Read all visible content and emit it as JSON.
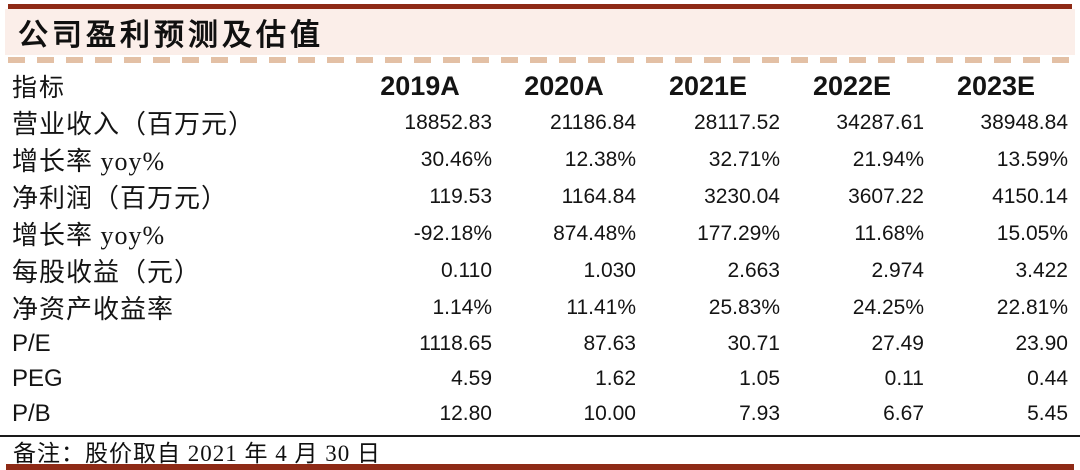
{
  "header": {
    "title": "公司盈利预测及估值"
  },
  "table": {
    "columns": [
      "指标",
      "2019A",
      "2020A",
      "2021E",
      "2022E",
      "2023E"
    ],
    "rows": [
      {
        "label": "营业收入（百万元）",
        "values": [
          "18852.83",
          "21186.84",
          "28117.52",
          "34287.61",
          "38948.84"
        ]
      },
      {
        "label": "增长率 yoy%",
        "values": [
          "30.46%",
          "12.38%",
          "32.71%",
          "21.94%",
          "13.59%"
        ]
      },
      {
        "label": "净利润（百万元）",
        "values": [
          "119.53",
          "1164.84",
          "3230.04",
          "3607.22",
          "4150.14"
        ]
      },
      {
        "label": "增长率 yoy%",
        "values": [
          "-92.18%",
          "874.48%",
          "177.29%",
          "11.68%",
          "15.05%"
        ]
      },
      {
        "label": "每股收益（元）",
        "values": [
          "0.110",
          "1.030",
          "2.663",
          "2.974",
          "3.422"
        ]
      },
      {
        "label": "净资产收益率",
        "values": [
          "1.14%",
          "11.41%",
          "25.83%",
          "24.25%",
          "22.81%"
        ]
      },
      {
        "label": "P/E",
        "values": [
          "1118.65",
          "87.63",
          "30.71",
          "27.49",
          "23.90"
        ]
      },
      {
        "label": "PEG",
        "values": [
          "4.59",
          "1.62",
          "1.05",
          "0.11",
          "0.44"
        ]
      },
      {
        "label": "P/B",
        "values": [
          "12.80",
          "10.00",
          "7.93",
          "6.67",
          "5.45"
        ]
      }
    ]
  },
  "footer": {
    "note": "备注：股价取自 2021 年 4 月 30 日"
  },
  "colors": {
    "accent_red": "#8E2A16",
    "band_pink": "#FBEEE9",
    "dash_tan": "#E3C0A5"
  }
}
